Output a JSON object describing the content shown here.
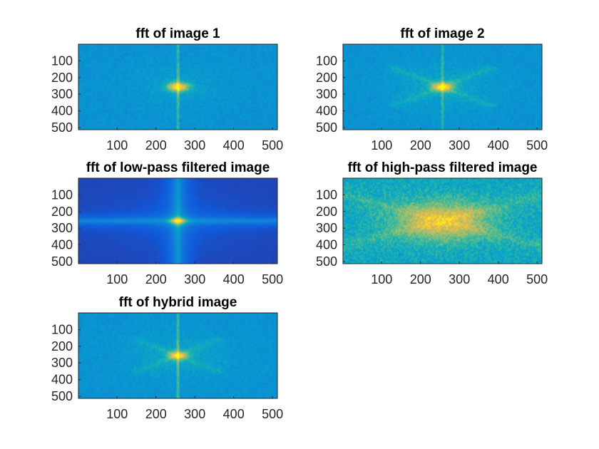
{
  "chart_data": [
    {
      "type": "heatmap",
      "title": "fft of image 1",
      "variant": "image1",
      "xticks": [
        100,
        200,
        300,
        400,
        500
      ],
      "yticks": [
        100,
        200,
        300,
        400,
        500
      ],
      "xlim": [
        0.5,
        512.5
      ],
      "ylim": [
        0.5,
        512.5
      ],
      "y_reversed": true,
      "colormap": "parula",
      "grid": false
    },
    {
      "type": "heatmap",
      "title": "fft of image 2",
      "variant": "image2",
      "xticks": [
        100,
        200,
        300,
        400,
        500
      ],
      "yticks": [
        100,
        200,
        300,
        400,
        500
      ],
      "xlim": [
        0.5,
        512.5
      ],
      "ylim": [
        0.5,
        512.5
      ],
      "y_reversed": true,
      "colormap": "parula",
      "grid": false
    },
    {
      "type": "heatmap",
      "title": "fft of low-pass filtered image",
      "variant": "lowpass",
      "xticks": [
        100,
        200,
        300,
        400,
        500
      ],
      "yticks": [
        100,
        200,
        300,
        400,
        500
      ],
      "xlim": [
        0.5,
        512.5
      ],
      "ylim": [
        0.5,
        512.5
      ],
      "y_reversed": true,
      "colormap": "parula",
      "grid": false
    },
    {
      "type": "heatmap",
      "title": "fft of high-pass filtered image",
      "variant": "highpass",
      "xticks": [
        100,
        200,
        300,
        400,
        500
      ],
      "yticks": [
        100,
        200,
        300,
        400,
        500
      ],
      "xlim": [
        0.5,
        512.5
      ],
      "ylim": [
        0.5,
        512.5
      ],
      "y_reversed": true,
      "colormap": "parula",
      "grid": false
    },
    {
      "type": "heatmap",
      "title": "fft of hybrid image",
      "variant": "hybrid",
      "xticks": [
        100,
        200,
        300,
        400,
        500
      ],
      "yticks": [
        100,
        200,
        300,
        400,
        500
      ],
      "xlim": [
        0.5,
        512.5
      ],
      "ylim": [
        0.5,
        512.5
      ],
      "y_reversed": true,
      "colormap": "parula",
      "grid": false
    }
  ]
}
